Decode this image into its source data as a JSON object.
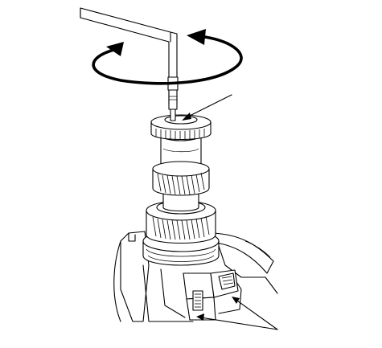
{
  "figure": {
    "background": "#ffffff",
    "ink": "#000000",
    "rotation_arrow_icon": "clockwise-rotation-arrow",
    "parts": [
      "hex-key-tool",
      "bearing-retainer-nut",
      "shaft-bearing",
      "gear-upper",
      "gear-lower",
      "synchronizer-ring",
      "transmission-case",
      "holding-fixture"
    ],
    "callouts": 2
  }
}
